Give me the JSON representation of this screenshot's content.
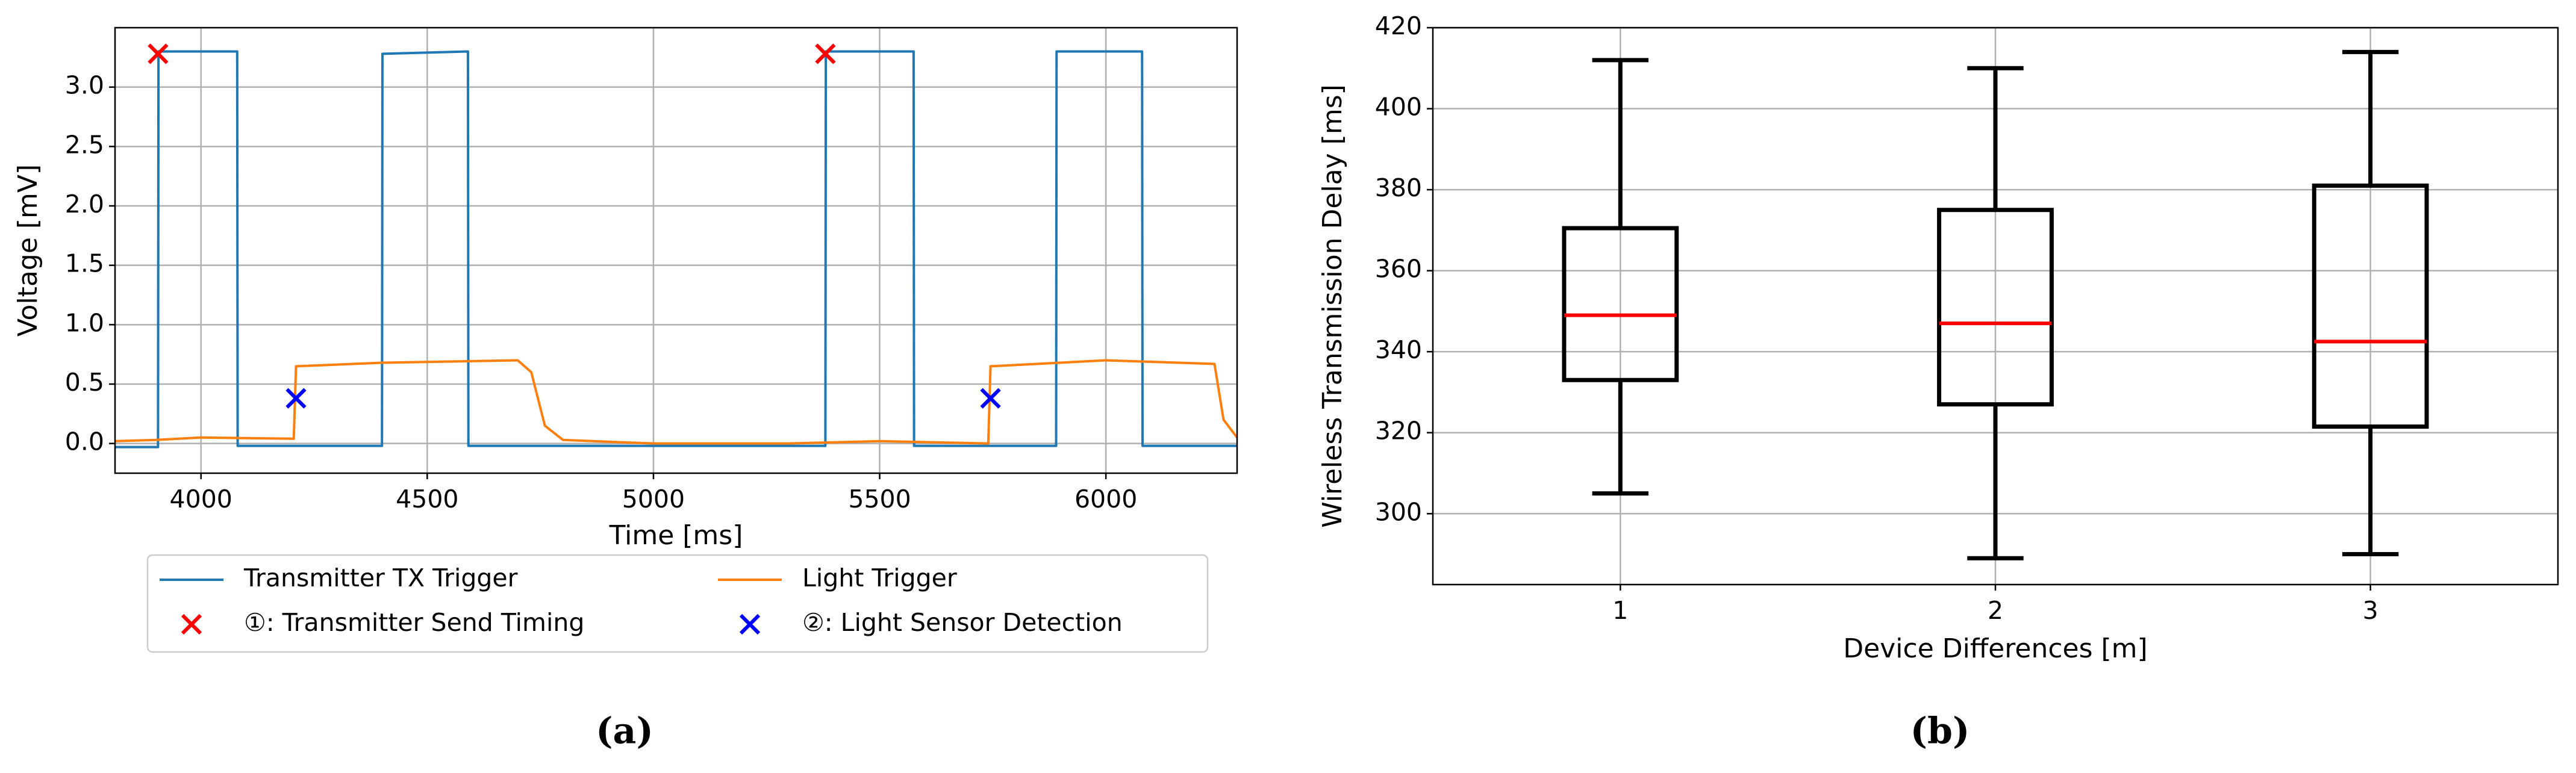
{
  "chart_data": [
    {
      "type": "line",
      "caption": "(a)",
      "x_label": "Time [ms]",
      "y_label": "Voltage [mV]",
      "xlim": [
        3810,
        6290
      ],
      "ylim": [
        -0.25,
        3.5
      ],
      "xticks": [
        4000,
        4500,
        5000,
        5500,
        6000
      ],
      "yticks": [
        {
          "value": 0,
          "label": "0.0"
        },
        0.5,
        {
          "value": 1,
          "label": "1.0"
        },
        1.5,
        {
          "value": 2,
          "label": "2.0"
        },
        2.5,
        {
          "value": 3,
          "label": "3.0"
        }
      ],
      "grid": true,
      "series": [
        {
          "name": "Transmitter TX Trigger",
          "style": "line",
          "color": "#1f77b4",
          "x": [
            3810,
            3905,
            3906,
            4080,
            4081,
            4400,
            4401,
            4590,
            4591,
            5380,
            5381,
            5575,
            5576,
            5890,
            5891,
            6080,
            6081,
            6290
          ],
          "values": [
            -0.03,
            -0.03,
            3.3,
            3.3,
            -0.02,
            -0.02,
            3.28,
            3.3,
            -0.02,
            -0.02,
            3.3,
            3.3,
            -0.02,
            -0.02,
            3.3,
            3.3,
            -0.02,
            -0.02
          ]
        },
        {
          "name": "Light Trigger",
          "style": "line",
          "color": "#ff7f0e",
          "x": [
            3810,
            3900,
            4000,
            4205,
            4210,
            4400,
            4700,
            4730,
            4760,
            4800,
            5000,
            5300,
            5500,
            5740,
            5745,
            6000,
            6240,
            6260,
            6290
          ],
          "values": [
            0.02,
            0.03,
            0.05,
            0.04,
            0.65,
            0.68,
            0.7,
            0.6,
            0.15,
            0.03,
            0.0,
            0.0,
            0.02,
            0.0,
            0.65,
            0.7,
            0.67,
            0.2,
            0.05
          ]
        },
        {
          "name": "①: Transmitter Send Timing",
          "style": "x-marker",
          "color": "#ff0000",
          "x": [
            3905,
            5380
          ],
          "values": [
            3.28,
            3.28
          ]
        },
        {
          "name": "②: Light Sensor Detection",
          "style": "x-marker",
          "color": "#0000ff",
          "x": [
            4210,
            5745
          ],
          "values": [
            0.38,
            0.38
          ]
        }
      ]
    },
    {
      "type": "box",
      "caption": "(b)",
      "x_label": "Device Differences [m]",
      "y_label": "Wireless Transmission Delay [ms]",
      "categories": [
        "1",
        "2",
        "3"
      ],
      "ylim": [
        282.5,
        420
      ],
      "yticks": [
        300,
        320,
        340,
        360,
        380,
        400,
        420
      ],
      "grid": true,
      "color": "#000000",
      "median_color": "#ff0000",
      "whisker_low": [
        305,
        289,
        290
      ],
      "q1": [
        333,
        327,
        321.5
      ],
      "median": [
        349,
        347,
        342.5
      ],
      "q3": [
        370.5,
        375,
        381
      ],
      "whisker_high": [
        412,
        410,
        414
      ]
    }
  ]
}
